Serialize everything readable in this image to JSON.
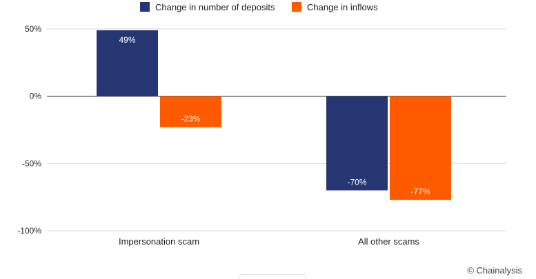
{
  "chart_data": {
    "type": "bar",
    "categories": [
      "Impersonation scam",
      "All other scams"
    ],
    "series": [
      {
        "name": "Change in number of deposits",
        "values": [
          49,
          -70
        ],
        "labels": [
          "49%",
          "-70%"
        ],
        "color": "#263673"
      },
      {
        "name": "Change in inflows",
        "values": [
          -23,
          -77
        ],
        "labels": [
          "-23%",
          "-77%"
        ],
        "color": "#ff5a00"
      }
    ],
    "ylim": [
      -100,
      50
    ],
    "yticks": [
      {
        "value": 50,
        "label": "50%"
      },
      {
        "value": 0,
        "label": "0%"
      },
      {
        "value": -50,
        "label": "-50%"
      },
      {
        "value": -100,
        "label": "-100%"
      }
    ],
    "grid": true,
    "legend_position": "top-center",
    "xlabel": "",
    "ylabel": ""
  },
  "footer": {
    "credit": "© Chainalysis"
  }
}
